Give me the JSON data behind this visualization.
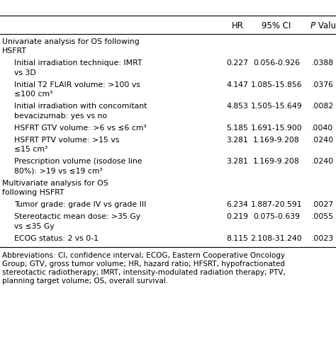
{
  "header": [
    "HR",
    "95% CI",
    "P Value"
  ],
  "rows": [
    {
      "text": "Univariate analysis for OS following\nHSFRT",
      "indent": 0,
      "hr": "",
      "ci": "",
      "pval": ""
    },
    {
      "text": "Initial irradiation technique: IMRT\nvs 3D",
      "indent": 1,
      "hr": "0.227",
      "ci": "0.056-0.926",
      "pval": ".0388"
    },
    {
      "text": "Initial T2 FLAIR volume: >100 vs\n≤100 cm³",
      "indent": 1,
      "hr": "4.147",
      "ci": "1.085-15.856",
      "pval": ".0376"
    },
    {
      "text": "Initial irradiation with concomitant\nbevacizumab: yes vs no",
      "indent": 1,
      "hr": "4.853",
      "ci": "1.505-15.649",
      "pval": ".0082"
    },
    {
      "text": "HSFRT GTV volume: >6 vs ≤6 cm³",
      "indent": 1,
      "hr": "5.185",
      "ci": "1.691-15.900",
      "pval": ".0040"
    },
    {
      "text": "HSFRT PTV volume: >15 vs\n≤15 cm³",
      "indent": 1,
      "hr": "3.281",
      "ci": "1.169-9.208",
      "pval": ".0240"
    },
    {
      "text": "Prescription volume (isodose line\n80%): >19 vs ≤19 cm³",
      "indent": 1,
      "hr": "3.281",
      "ci": "1.169-9.208",
      "pval": ".0240"
    },
    {
      "text": "Multivariate analysis for OS\nfollowing HSFRT",
      "indent": 0,
      "hr": "",
      "ci": "",
      "pval": ""
    },
    {
      "text": "Tumor grade: grade IV vs grade III",
      "indent": 1,
      "hr": "6.234",
      "ci": "1.887-20.591",
      "pval": ".0027"
    },
    {
      "text": "Stereotactic mean dose: >35 Gy\nvs ≤35 Gy",
      "indent": 1,
      "hr": "0.219",
      "ci": "0.075-0.639",
      "pval": ".0055"
    },
    {
      "text": "ECOG status: 2 vs 0-1",
      "indent": 1,
      "hr": "8.115",
      "ci": "2.108-31.240",
      "pval": ".0023"
    }
  ],
  "footer_lines": [
    "Abbreviations: CI, confidence interval; ECOG, Eastern Cooperative Oncology",
    "Group; GTV, gross tumor volume; HR, hazard ratio; HFSRT, hypofractionated",
    "stereotactic radiotherapy; IMRT, intensity-modulated radiation therapy; PTV,",
    "planning target volume; OS, overall survival."
  ],
  "bg_color": "#ffffff",
  "text_color": "#000000",
  "font_size": 7.8,
  "header_font_size": 8.5
}
